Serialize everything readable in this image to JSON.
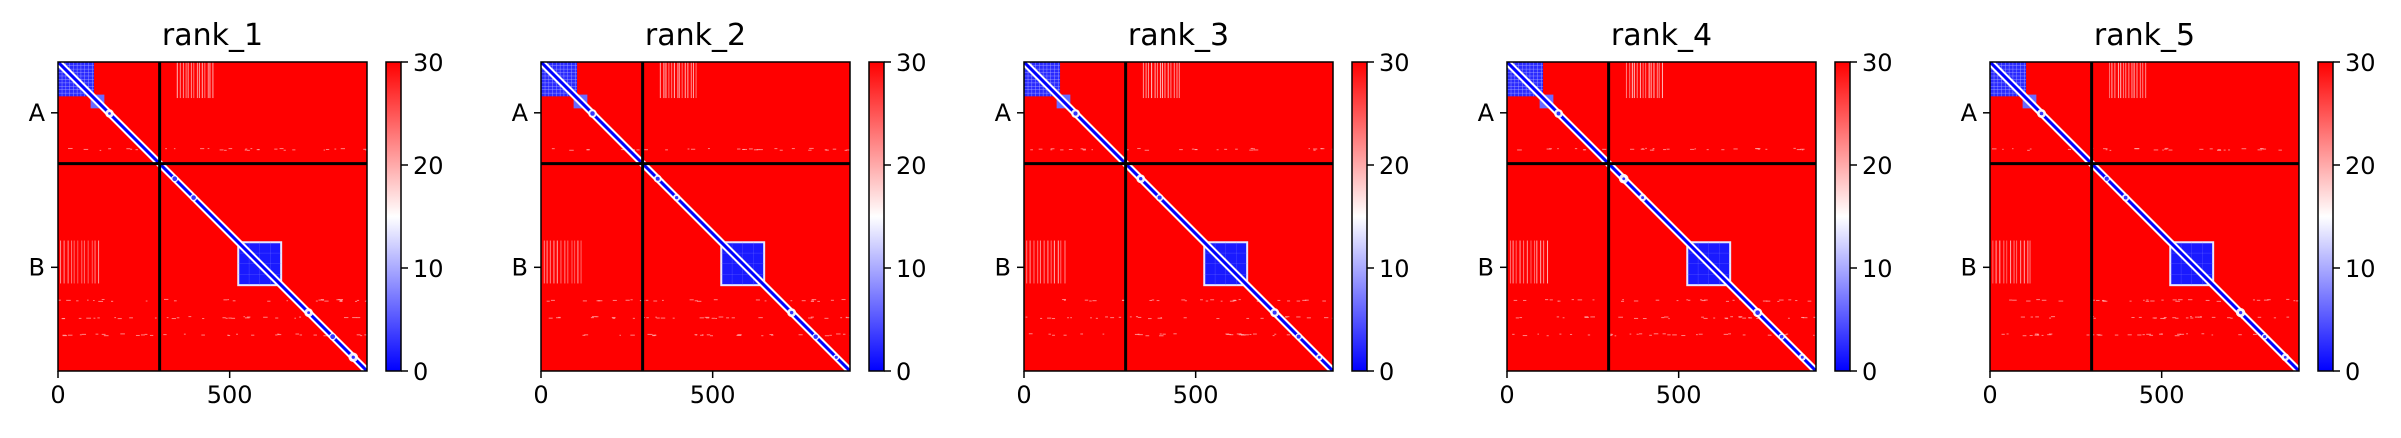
{
  "chart_data": [
    {
      "type": "heatmap",
      "title": "rank_1",
      "x_ticks": [
        "0",
        "500"
      ],
      "y_ticks": [
        "A",
        "B"
      ],
      "colorbar": {
        "ticks": [
          "0",
          "10",
          "20",
          "30"
        ],
        "range": [
          0,
          30
        ],
        "colors": [
          "#0000ff",
          "#ffffff",
          "#ff0000"
        ]
      },
      "xlim": [
        0,
        900
      ],
      "chain_boundary": 296,
      "chains": [
        "A",
        "B"
      ],
      "low_error_blocks": [
        {
          "x": [
            0,
            130
          ],
          "y": [
            0,
            130
          ],
          "label": "A"
        },
        {
          "x": [
            525,
            650
          ],
          "y": [
            525,
            650
          ],
          "label": "B"
        }
      ],
      "rank": 1
    },
    {
      "type": "heatmap",
      "title": "rank_2",
      "x_ticks": [
        "0",
        "500"
      ],
      "y_ticks": [
        "A",
        "B"
      ],
      "colorbar": {
        "ticks": [
          "0",
          "10",
          "20",
          "30"
        ],
        "range": [
          0,
          30
        ]
      },
      "xlim": [
        0,
        900
      ],
      "chain_boundary": 296,
      "rank": 2
    },
    {
      "type": "heatmap",
      "title": "rank_3",
      "x_ticks": [
        "0",
        "500"
      ],
      "y_ticks": [
        "A",
        "B"
      ],
      "colorbar": {
        "ticks": [
          "0",
          "10",
          "20",
          "30"
        ],
        "range": [
          0,
          30
        ]
      },
      "xlim": [
        0,
        900
      ],
      "chain_boundary": 296,
      "rank": 3
    },
    {
      "type": "heatmap",
      "title": "rank_4",
      "x_ticks": [
        "0",
        "500"
      ],
      "y_ticks": [
        "A",
        "B"
      ],
      "colorbar": {
        "ticks": [
          "0",
          "10",
          "20",
          "30"
        ],
        "range": [
          0,
          30
        ]
      },
      "xlim": [
        0,
        900
      ],
      "chain_boundary": 296,
      "rank": 4
    },
    {
      "type": "heatmap",
      "title": "rank_5",
      "x_ticks": [
        "0",
        "500"
      ],
      "y_ticks": [
        "A",
        "B"
      ],
      "colorbar": {
        "ticks": [
          "0",
          "10",
          "20",
          "30"
        ],
        "range": [
          0,
          30
        ]
      },
      "xlim": [
        0,
        900
      ],
      "chain_boundary": 296,
      "rank": 5
    }
  ]
}
